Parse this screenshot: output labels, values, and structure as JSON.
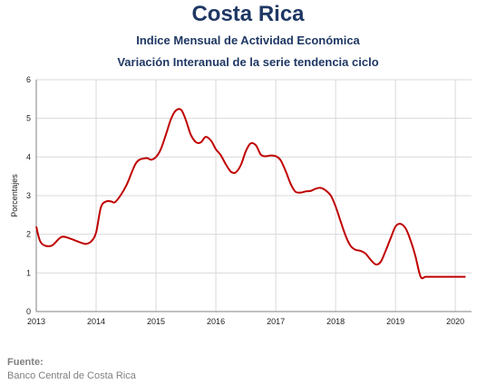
{
  "header": {
    "title": "Costa Rica",
    "subtitle1": "Indice Mensual de  Actividad Económica",
    "subtitle2": "Variación Interanual de la serie tendencia ciclo"
  },
  "source": {
    "label": "Fuente:",
    "text": "Banco Central de Costa Rica"
  },
  "colors": {
    "line": "#c00000",
    "grid": "#d9d9d9",
    "axis": "#808080"
  },
  "chart_data": {
    "type": "line",
    "title": "",
    "xlabel": "",
    "ylabel": "Porcentajes",
    "xlim": [
      2013.0,
      2020.25
    ],
    "ylim": [
      0,
      6
    ],
    "x_ticks": [
      2013,
      2014,
      2015,
      2016,
      2017,
      2018,
      2019,
      2020
    ],
    "y_ticks": [
      0,
      1,
      2,
      3,
      4,
      5,
      6
    ],
    "grid": true,
    "legend": "none",
    "series": [
      {
        "x": [
          2013.0,
          2013.08,
          2013.25,
          2013.42,
          2013.58,
          2013.75,
          2013.83,
          2013.92,
          2014.0,
          2014.08,
          2014.17,
          2014.25,
          2014.33,
          2014.5,
          2014.67,
          2014.83,
          2014.92,
          2015.0,
          2015.08,
          2015.17,
          2015.25,
          2015.33,
          2015.42,
          2015.5,
          2015.58,
          2015.67,
          2015.75,
          2015.83,
          2015.92,
          2016.0,
          2016.08,
          2016.17,
          2016.25,
          2016.33,
          2016.42,
          2016.5,
          2016.58,
          2016.67,
          2016.75,
          2016.83,
          2016.92,
          2017.0,
          2017.08,
          2017.17,
          2017.25,
          2017.33,
          2017.42,
          2017.5,
          2017.58,
          2017.67,
          2017.75,
          2017.83,
          2017.92,
          2018.0,
          2018.08,
          2018.17,
          2018.25,
          2018.33,
          2018.42,
          2018.5,
          2018.58,
          2018.67,
          2018.75,
          2018.83,
          2018.92,
          2019.0,
          2019.08,
          2019.17,
          2019.25,
          2019.33,
          2019.42,
          2019.5,
          2019.58,
          2019.67,
          2019.75,
          2019.83,
          2019.92,
          2020.0,
          2020.08,
          2020.17
        ],
        "y": [
          2.2,
          1.78,
          1.7,
          1.93,
          1.88,
          1.78,
          1.75,
          1.82,
          2.05,
          2.7,
          2.85,
          2.85,
          2.85,
          3.25,
          3.85,
          3.97,
          3.93,
          4.0,
          4.2,
          4.6,
          4.98,
          5.2,
          5.22,
          4.95,
          4.58,
          4.38,
          4.38,
          4.52,
          4.42,
          4.2,
          4.05,
          3.8,
          3.62,
          3.6,
          3.8,
          4.15,
          4.35,
          4.3,
          4.06,
          4.02,
          4.04,
          4.02,
          3.92,
          3.62,
          3.3,
          3.1,
          3.08,
          3.11,
          3.12,
          3.18,
          3.2,
          3.14,
          3.0,
          2.72,
          2.35,
          1.95,
          1.7,
          1.6,
          1.57,
          1.5,
          1.35,
          1.22,
          1.28,
          1.55,
          1.9,
          2.2,
          2.27,
          2.15,
          1.85,
          1.45,
          0.9,
          0.9,
          0.9,
          0.9,
          0.9,
          0.9,
          0.9,
          0.9,
          0.9,
          0.9
        ]
      }
    ]
  }
}
